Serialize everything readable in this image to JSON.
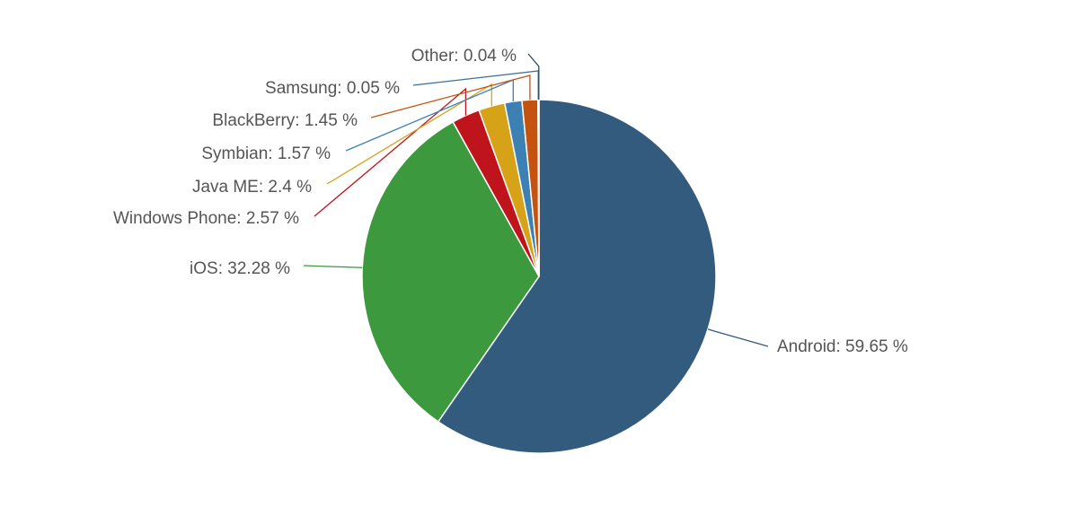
{
  "chart_data": {
    "type": "pie",
    "title": "",
    "slices": [
      {
        "name": "Android",
        "value": 59.65,
        "label": "Android: 59.65 %",
        "color": "#335b7d"
      },
      {
        "name": "iOS",
        "value": 32.28,
        "label": "iOS: 32.28 %",
        "color": "#3d993d"
      },
      {
        "name": "Windows Phone",
        "value": 2.57,
        "label": "Windows Phone: 2.57 %",
        "color": "#c0141c"
      },
      {
        "name": "Java ME",
        "value": 2.4,
        "label": "Java ME: 2.4 %",
        "color": "#d6a217"
      },
      {
        "name": "Symbian",
        "value": 1.57,
        "label": "Symbian: 1.57 %",
        "color": "#3c80b4"
      },
      {
        "name": "BlackBerry",
        "value": 1.45,
        "label": "BlackBerry: 1.45 %",
        "color": "#c4530f"
      },
      {
        "name": "Samsung",
        "value": 0.05,
        "label": "Samsung: 0.05 %",
        "color": "#3b6fa0"
      },
      {
        "name": "Other",
        "value": 0.04,
        "label": "Other: 0.04 %",
        "color": "#2e4a66"
      }
    ],
    "legend": "none",
    "data_labels": "outside-with-connectors"
  }
}
